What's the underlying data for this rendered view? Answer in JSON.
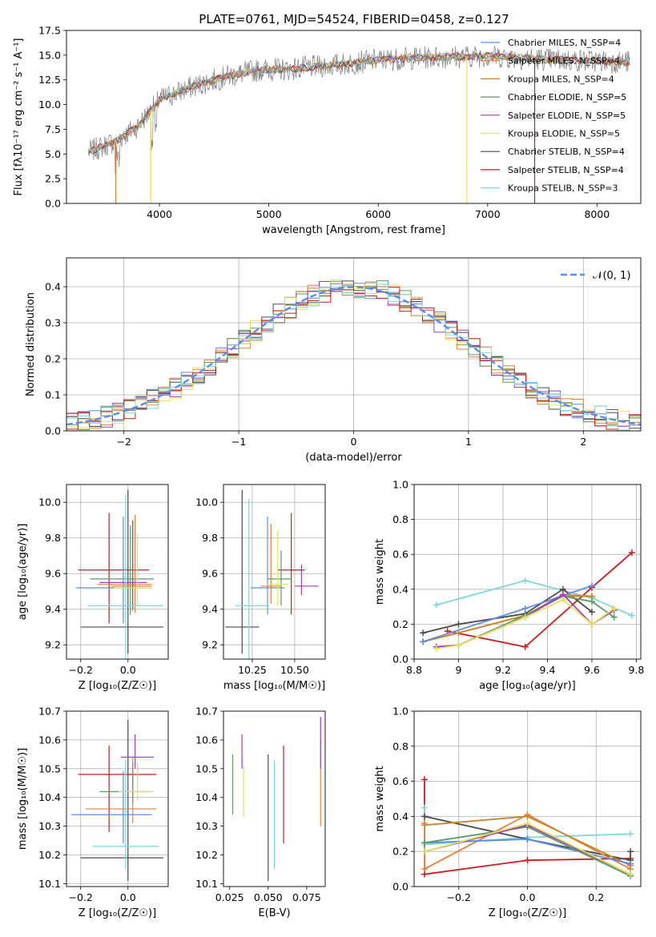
{
  "title": "PLATE=0761, MJD=54524, FIBERID=0458, z=0.127",
  "colors": {
    "chabrier_miles": "#5b8ee6",
    "salpeter_miles": "#e8823a",
    "kroupa_miles": "#c8862a",
    "chabrier_elodie": "#5e9a66",
    "salpeter_elodie": "#9b3fc2",
    "kroupa_elodie": "#e2e35a",
    "chabrier_stelib": "#4a4a4a",
    "salpeter_stelib": "#c81e1e",
    "kroupa_stelib": "#7fd6dc",
    "normal": "#5b8ee6"
  },
  "chart_data": [
    {
      "type": "line",
      "id": "spectrum",
      "xlabel": "wavelength [Angstrom, rest frame]",
      "ylabel": "Flux [fλ10⁻¹⁷ erg cm⁻² s⁻¹ A⁻¹]",
      "xlim": [
        3150,
        8400
      ],
      "ylim": [
        0,
        17.5
      ],
      "xticks": [
        4000,
        5000,
        6000,
        7000,
        8000
      ],
      "yticks": [
        "0.0",
        "2.5",
        "5.0",
        "7.5",
        "10.0",
        "12.5",
        "15.0",
        "17.5"
      ],
      "legend": "top-right",
      "legend_entries": [
        {
          "label": "Chabrier MILES, N_SSP=4",
          "color": "#5b8ee6"
        },
        {
          "label": "Salpeter MILES, N_SSP=4",
          "color": "#e8823a"
        },
        {
          "label": "Kroupa MILES, N_SSP=4",
          "color": "#c8862a"
        },
        {
          "label": "Chabrier ELODIE, N_SSP=5",
          "color": "#5e9a66"
        },
        {
          "label": "Salpeter ELODIE, N_SSP=5",
          "color": "#9b3fc2"
        },
        {
          "label": "Kroupa ELODIE, N_SSP=5",
          "color": "#e2e35a"
        },
        {
          "label": "Chabrier STELIB, N_SSP=4",
          "color": "#4a4a4a"
        },
        {
          "label": "Salpeter STELIB, N_SSP=4",
          "color": "#c81e1e"
        },
        {
          "label": "Kroupa STELIB, N_SSP=3",
          "color": "#7fd6dc"
        }
      ],
      "continuum": [
        [
          3350,
          5.2
        ],
        [
          3600,
          6.3
        ],
        [
          3800,
          7.8
        ],
        [
          4000,
          10.5
        ],
        [
          4300,
          11.8
        ],
        [
          4600,
          12.8
        ],
        [
          4900,
          13.5
        ],
        [
          5200,
          13.6
        ],
        [
          5600,
          14.0
        ],
        [
          6000,
          14.5
        ],
        [
          6500,
          14.8
        ],
        [
          7000,
          14.9
        ],
        [
          7500,
          14.6
        ],
        [
          8000,
          14.4
        ],
        [
          8300,
          14.3
        ]
      ]
    },
    {
      "type": "line",
      "id": "residuals",
      "xlabel": "(data-model)/error",
      "ylabel": "Normed distribution",
      "xlim": [
        -2.5,
        2.5
      ],
      "ylim": [
        0,
        0.48
      ],
      "xticks": [
        -2,
        -1,
        0,
        1,
        2
      ],
      "xtick_labels": [
        "−2",
        "−1",
        "0",
        "1",
        "2"
      ],
      "yticks": [
        "0.0",
        "0.1",
        "0.2",
        "0.3",
        "0.4"
      ],
      "grid": true,
      "legend": "top-right",
      "legend_entry": "𝒩(0, 1)",
      "normal_mean": 0,
      "normal_sigma": 1,
      "hist_bin_width": 0.1
    },
    {
      "type": "scatter",
      "id": "age-vs-Z",
      "xlabel": "Z [log₁₀(Z/Z☉)]",
      "ylabel": "age  [log₁₀(age/yr)]",
      "xlim": [
        -0.26,
        0.17
      ],
      "ylim": [
        9.12,
        10.1
      ],
      "xticks": [
        -0.2,
        0.0
      ],
      "xtick_labels": [
        "−0.2",
        "0.0"
      ],
      "yticks": [
        "9.2",
        "9.4",
        "9.6",
        "9.8",
        "10.0"
      ],
      "grid": true,
      "points": [
        {
          "x": -0.08,
          "xerr": [
            0.13,
            0.17
          ],
          "y": 9.62,
          "yerr": [
            0.3,
            0.32
          ],
          "color": "#c81e1e"
        },
        {
          "x": 0.0,
          "xerr": [
            0.2,
            0.15
          ],
          "y": 9.3,
          "yerr": [
            0.15,
            0.77
          ],
          "color": "#4a4a4a"
        },
        {
          "x": -0.02,
          "xerr": [
            0.2,
            0.12
          ],
          "y": 9.52,
          "yerr": [
            0.2,
            0.4
          ],
          "color": "#5b8ee6"
        },
        {
          "x": 0.01,
          "xerr": [
            0.17,
            0.1
          ],
          "y": 9.57,
          "yerr": [
            0.2,
            0.3
          ],
          "color": "#5e9a66"
        },
        {
          "x": 0.02,
          "xerr": [
            0.15,
            0.08
          ],
          "y": 9.54,
          "yerr": [
            0.15,
            0.35
          ],
          "color": "#e8823a"
        },
        {
          "x": 0.03,
          "xerr": [
            0.1,
            0.07
          ],
          "y": 9.53,
          "yerr": [
            0.15,
            0.4
          ],
          "color": "#c8862a"
        },
        {
          "x": 0.02,
          "xerr": [
            0.14,
            0.06
          ],
          "y": 9.55,
          "yerr": [
            0.15,
            0.35
          ],
          "color": "#9b3fc2"
        },
        {
          "x": 0.04,
          "xerr": [
            0.1,
            0.06
          ],
          "y": 9.52,
          "yerr": [
            0.1,
            0.3
          ],
          "color": "#e2e35a"
        },
        {
          "x": -0.01,
          "xerr": [
            0.16,
            0.16
          ],
          "y": 9.42,
          "yerr": [
            0.3,
            0.62
          ],
          "color": "#7fd6dc"
        }
      ]
    },
    {
      "type": "scatter",
      "id": "age-vs-mass",
      "xlabel": "mass [log₁₀(M/M☉)]",
      "ylabel": "",
      "xlim": [
        10.08,
        10.68
      ],
      "ylim": [
        9.12,
        10.1
      ],
      "xticks": [
        10.25,
        10.5
      ],
      "xtick_labels": [
        "10.25",
        "10.50"
      ],
      "yticks": [
        "9.2",
        "9.4",
        "9.6",
        "9.8",
        "10.0"
      ],
      "grid": true,
      "points": [
        {
          "x": 10.19,
          "xerr": [
            0.1,
            0.1
          ],
          "y": 9.3,
          "yerr": [
            0.15,
            0.77
          ],
          "color": "#4a4a4a"
        },
        {
          "x": 10.48,
          "xerr": [
            0.08,
            0.08
          ],
          "y": 9.62,
          "yerr": [
            0.25,
            0.32
          ],
          "color": "#c81e1e"
        },
        {
          "x": 10.34,
          "xerr": [
            0.1,
            0.1
          ],
          "y": 9.52,
          "yerr": [
            0.15,
            0.4
          ],
          "color": "#5b8ee6"
        },
        {
          "x": 10.42,
          "xerr": [
            0.08,
            0.06
          ],
          "y": 9.57,
          "yerr": [
            0.15,
            0.16
          ],
          "color": "#5e9a66"
        },
        {
          "x": 10.36,
          "xerr": [
            0.06,
            0.06
          ],
          "y": 9.53,
          "yerr": [
            0.1,
            0.35
          ],
          "color": "#e8823a"
        },
        {
          "x": 10.54,
          "xerr": [
            0.04,
            0.1
          ],
          "y": 9.53,
          "yerr": [
            0.05,
            0.12
          ],
          "color": "#9b3fc2"
        },
        {
          "x": 10.4,
          "xerr": [
            0.06,
            0.06
          ],
          "y": 9.54,
          "yerr": [
            0.12,
            0.3
          ],
          "color": "#e2e35a"
        },
        {
          "x": 10.23,
          "xerr": [
            0.08,
            0.12
          ],
          "y": 9.42,
          "yerr": [
            0.3,
            0.6
          ],
          "color": "#7fd6dc"
        }
      ]
    },
    {
      "type": "line",
      "id": "massweight-vs-age",
      "xlabel": "age  [log₁₀(age/yr)]",
      "ylabel": "mass weight",
      "xlim": [
        8.8,
        9.82
      ],
      "ylim": [
        0,
        1.0
      ],
      "xticks": [
        8.8,
        9.0,
        9.2,
        9.4,
        9.6,
        9.8
      ],
      "yticks": [
        "0.0",
        "0.2",
        "0.4",
        "0.6",
        "0.8",
        "1.0"
      ],
      "grid": true,
      "series": [
        {
          "color": "#c81e1e",
          "x": [
            8.95,
            9.3,
            9.6,
            9.78
          ],
          "y": [
            0.16,
            0.07,
            0.41,
            0.61
          ]
        },
        {
          "color": "#7fd6dc",
          "x": [
            8.9,
            9.3,
            9.6,
            9.78
          ],
          "y": [
            0.31,
            0.45,
            0.35,
            0.25
          ]
        },
        {
          "color": "#4a4a4a",
          "x": [
            8.84,
            9.0,
            9.3,
            9.47,
            9.6
          ],
          "y": [
            0.15,
            0.2,
            0.26,
            0.4,
            0.27
          ]
        },
        {
          "color": "#e8823a",
          "x": [
            8.84,
            9.0,
            9.3,
            9.47,
            9.6
          ],
          "y": [
            0.1,
            0.15,
            0.25,
            0.37,
            0.36
          ]
        },
        {
          "color": "#c8862a",
          "x": [
            8.84,
            9.0,
            9.3,
            9.47,
            9.6
          ],
          "y": [
            0.1,
            0.15,
            0.25,
            0.36,
            0.36
          ]
        },
        {
          "color": "#5b8ee6",
          "x": [
            8.84,
            9.3,
            9.6
          ],
          "y": [
            0.1,
            0.29,
            0.42
          ]
        },
        {
          "color": "#5e9a66",
          "x": [
            8.9,
            9.0,
            9.3,
            9.47,
            9.6,
            9.7
          ],
          "y": [
            0.07,
            0.08,
            0.25,
            0.36,
            0.33,
            0.24
          ]
        },
        {
          "color": "#9b3fc2",
          "x": [
            8.9,
            9.0,
            9.3,
            9.47,
            9.6,
            9.7
          ],
          "y": [
            0.07,
            0.08,
            0.24,
            0.37,
            0.2,
            0.28
          ]
        },
        {
          "color": "#e2e35a",
          "x": [
            8.9,
            9.0,
            9.3,
            9.47,
            9.6,
            9.7
          ],
          "y": [
            0.06,
            0.08,
            0.24,
            0.34,
            0.2,
            0.29
          ]
        }
      ]
    },
    {
      "type": "scatter",
      "id": "mass-vs-Z",
      "xlabel": "Z [log₁₀(Z/Z☉)]",
      "ylabel": "mass [log₁₀(M/M☉)]",
      "xlim": [
        -0.26,
        0.17
      ],
      "ylim": [
        10.09,
        10.7
      ],
      "xticks": [
        -0.2,
        0.0
      ],
      "xtick_labels": [
        "−0.2",
        "0.0"
      ],
      "yticks": [
        "10.1",
        "10.2",
        "10.3",
        "10.4",
        "10.5",
        "10.6",
        "10.7"
      ],
      "grid": true,
      "points": [
        {
          "x": -0.08,
          "xerr": [
            0.13,
            0.2
          ],
          "y": 10.48,
          "yerr": [
            0.2,
            0.1
          ],
          "color": "#c81e1e"
        },
        {
          "x": 0.0,
          "xerr": [
            0.2,
            0.15
          ],
          "y": 10.19,
          "yerr": [
            0.08,
            0.48
          ],
          "color": "#4a4a4a"
        },
        {
          "x": -0.02,
          "xerr": [
            0.22,
            0.12
          ],
          "y": 10.34,
          "yerr": [
            0.1,
            0.15
          ],
          "color": "#5b8ee6"
        },
        {
          "x": 0.02,
          "xerr": [
            0.2,
            0.1
          ],
          "y": 10.36,
          "yerr": [
            0.05,
            0.18
          ],
          "color": "#e8823a"
        },
        {
          "x": 0.02,
          "xerr": [
            0.14,
            0.07
          ],
          "y": 10.42,
          "yerr": [
            0.04,
            0.1
          ],
          "color": "#5e9a66"
        },
        {
          "x": 0.04,
          "xerr": [
            0.08,
            0.07
          ],
          "y": 10.42,
          "yerr": [
            0.03,
            0.1
          ],
          "color": "#e2e35a"
        },
        {
          "x": 0.03,
          "xerr": [
            0.06,
            0.08
          ],
          "y": 10.54,
          "yerr": [
            0.04,
            0.08
          ],
          "color": "#9b3fc2"
        },
        {
          "x": -0.01,
          "xerr": [
            0.14,
            0.14
          ],
          "y": 10.23,
          "yerr": [
            0.08,
            0.3
          ],
          "color": "#7fd6dc"
        }
      ]
    },
    {
      "type": "scatter",
      "id": "mass-vs-ebv",
      "xlabel": "E(B-V)",
      "ylabel": "",
      "xlim": [
        0.021,
        0.087
      ],
      "ylim": [
        10.09,
        10.7
      ],
      "xticks": [
        0.025,
        0.05,
        0.075
      ],
      "xtick_labels": [
        "0.025",
        "0.050",
        "0.075"
      ],
      "yticks": [
        "10.1",
        "10.2",
        "10.3",
        "10.4",
        "10.5",
        "10.6",
        "10.7"
      ],
      "grid": false,
      "points": [
        {
          "x": 0.027,
          "y": 10.42,
          "yerr": [
            0.08,
            0.13
          ],
          "color": "#5e9a66"
        },
        {
          "x": 0.033,
          "y": 10.54,
          "yerr": [
            0.04,
            0.08
          ],
          "color": "#9b3fc2"
        },
        {
          "x": 0.034,
          "y": 10.43,
          "yerr": [
            0.1,
            0.08
          ],
          "color": "#e2e35a"
        },
        {
          "x": 0.05,
          "y": 10.35,
          "yerr": [
            0.24,
            0.2
          ],
          "color": "#4a4a4a"
        },
        {
          "x": 0.054,
          "y": 10.33,
          "yerr": [
            0.18,
            0.2
          ],
          "color": "#7fd6dc"
        },
        {
          "x": 0.06,
          "y": 10.44,
          "yerr": [
            0.2,
            0.14
          ],
          "color": "#c81e1e"
        },
        {
          "x": 0.084,
          "y": 10.46,
          "yerr": [
            0.16,
            0.14
          ],
          "color": "#e8823a"
        },
        {
          "x": 0.084,
          "y": 10.56,
          "yerr": [
            0.06,
            0.12
          ],
          "color": "#9b3fc2"
        }
      ]
    },
    {
      "type": "line",
      "id": "massweight-vs-Z",
      "xlabel": "Z [log₁₀(Z/Z☉)]",
      "ylabel": "mass weight",
      "xlim": [
        -0.33,
        0.33
      ],
      "ylim": [
        0,
        1.0
      ],
      "xticks": [
        -0.2,
        0.0,
        0.2
      ],
      "xtick_labels": [
        "−0.2",
        "0.0",
        "0.2"
      ],
      "yticks": [
        "0.0",
        "0.2",
        "0.4",
        "0.6",
        "0.8",
        "1.0"
      ],
      "grid": true,
      "series": [
        {
          "color": "#c81e1e",
          "x": [
            -0.3,
            -0.3,
            0.0,
            0.3,
            0.3
          ],
          "y": [
            0.61,
            0.07,
            0.15,
            0.16,
            0.12
          ]
        },
        {
          "color": "#7fd6dc",
          "x": [
            -0.3,
            -0.3,
            0.0,
            0.3
          ],
          "y": [
            0.45,
            0.24,
            0.28,
            0.3
          ]
        },
        {
          "color": "#4a4a4a",
          "x": [
            -0.3,
            0.0,
            0.3,
            0.3
          ],
          "y": [
            0.4,
            0.27,
            0.15,
            0.2
          ]
        },
        {
          "color": "#e8823a",
          "x": [
            -0.3,
            -0.3,
            0.0,
            0.3
          ],
          "y": [
            0.36,
            0.1,
            0.41,
            0.1
          ]
        },
        {
          "color": "#c8862a",
          "x": [
            -0.3,
            0.0,
            0.3
          ],
          "y": [
            0.35,
            0.4,
            0.12
          ]
        },
        {
          "color": "#5b8ee6",
          "x": [
            -0.3,
            0.0,
            0.3
          ],
          "y": [
            0.25,
            0.27,
            0.13
          ]
        },
        {
          "color": "#5e9a66",
          "x": [
            -0.3,
            0.0,
            0.3
          ],
          "y": [
            0.25,
            0.34,
            0.06
          ]
        },
        {
          "color": "#9b3fc2",
          "x": [
            -0.3,
            0.0,
            0.3
          ],
          "y": [
            0.2,
            0.35,
            0.07
          ]
        },
        {
          "color": "#e2e35a",
          "x": [
            -0.3,
            0.0,
            0.3
          ],
          "y": [
            0.2,
            0.36,
            0.07
          ]
        }
      ]
    }
  ]
}
